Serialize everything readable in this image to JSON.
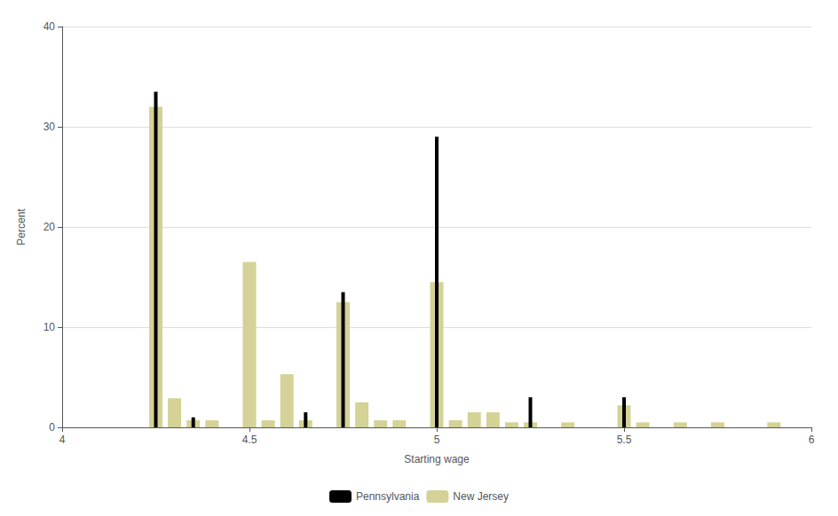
{
  "chart_data": {
    "type": "bar",
    "xlabel": "Starting wage",
    "ylabel": "Percent",
    "xlim": [
      4,
      6
    ],
    "ylim": [
      0,
      40
    ],
    "xticks": [
      4,
      4.5,
      5,
      5.5,
      6
    ],
    "yticks": [
      0,
      10,
      20,
      30,
      40
    ],
    "grid": true,
    "legend": "bottom",
    "series": [
      {
        "name": "Pennsylvania",
        "color": "#000000",
        "x": [
          4.25,
          4.35,
          4.65,
          4.75,
          5.0,
          5.25,
          5.5
        ],
        "values": [
          33.5,
          1.0,
          1.5,
          13.5,
          29.0,
          3.0,
          3.0
        ]
      },
      {
        "name": "New Jersey",
        "color": "#d4d296",
        "x": [
          4.25,
          4.3,
          4.35,
          4.4,
          4.5,
          4.55,
          4.6,
          4.65,
          4.75,
          4.8,
          4.85,
          4.9,
          5.0,
          5.05,
          5.1,
          5.15,
          5.2,
          5.25,
          5.35,
          5.5,
          5.55,
          5.65,
          5.75,
          5.9
        ],
        "values": [
          32.0,
          2.9,
          0.7,
          0.7,
          16.5,
          0.7,
          5.3,
          0.7,
          12.5,
          2.5,
          0.7,
          0.7,
          14.5,
          0.7,
          1.5,
          1.5,
          0.5,
          0.5,
          0.5,
          2.2,
          0.5,
          0.5,
          0.5,
          0.5
        ]
      }
    ]
  }
}
